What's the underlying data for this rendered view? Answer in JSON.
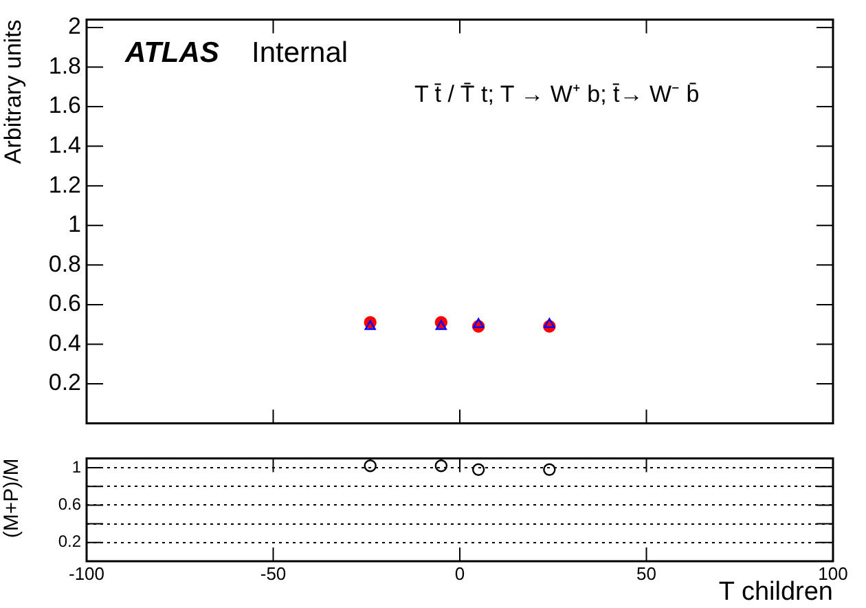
{
  "chart_data": [
    {
      "type": "scatter",
      "title": "T t̄ / T̄ t; T → W⁺ b; t̄→ W⁻ b̄",
      "ylabel": "Arbitrary units",
      "annotations": [
        "ATLAS",
        "Internal"
      ],
      "x": [
        -24,
        -5,
        5,
        24
      ],
      "series": [
        {
          "color": "#ff0000",
          "marker": "circle",
          "values": [
            0.51,
            0.51,
            0.49,
            0.49
          ]
        },
        {
          "color": "#0000ff",
          "marker": "triangle",
          "values": [
            0.49,
            0.49,
            0.5,
            0.5
          ]
        }
      ],
      "xlim": [
        -100,
        100
      ],
      "xticks": [
        -100,
        -50,
        0,
        50,
        100
      ],
      "ylim": [
        0,
        2.04
      ],
      "yticks": [
        0.2,
        0.4,
        0.6,
        0.8,
        1,
        1.2,
        1.4,
        1.6,
        1.8,
        2
      ],
      "tick_labels": "y",
      "grid": false,
      "legend": false
    },
    {
      "type": "scatter",
      "xlabel": "T children",
      "ylabel": "(M+P)/M",
      "x": [
        -24,
        -5,
        5,
        24
      ],
      "series": [
        {
          "color": "#000000",
          "marker": "circle",
          "values": [
            1.02,
            1.02,
            0.98,
            0.98
          ]
        }
      ],
      "xlim": [
        -100,
        100
      ],
      "xticks": [
        -100,
        -50,
        0,
        50,
        100
      ],
      "ylim": [
        0,
        1.1
      ],
      "yticks": [
        0.2,
        {
          "value": 0.4,
          "label": null
        },
        0.6,
        {
          "value": 0.8,
          "label": null
        },
        1
      ],
      "grid": "y",
      "legend": false
    }
  ]
}
